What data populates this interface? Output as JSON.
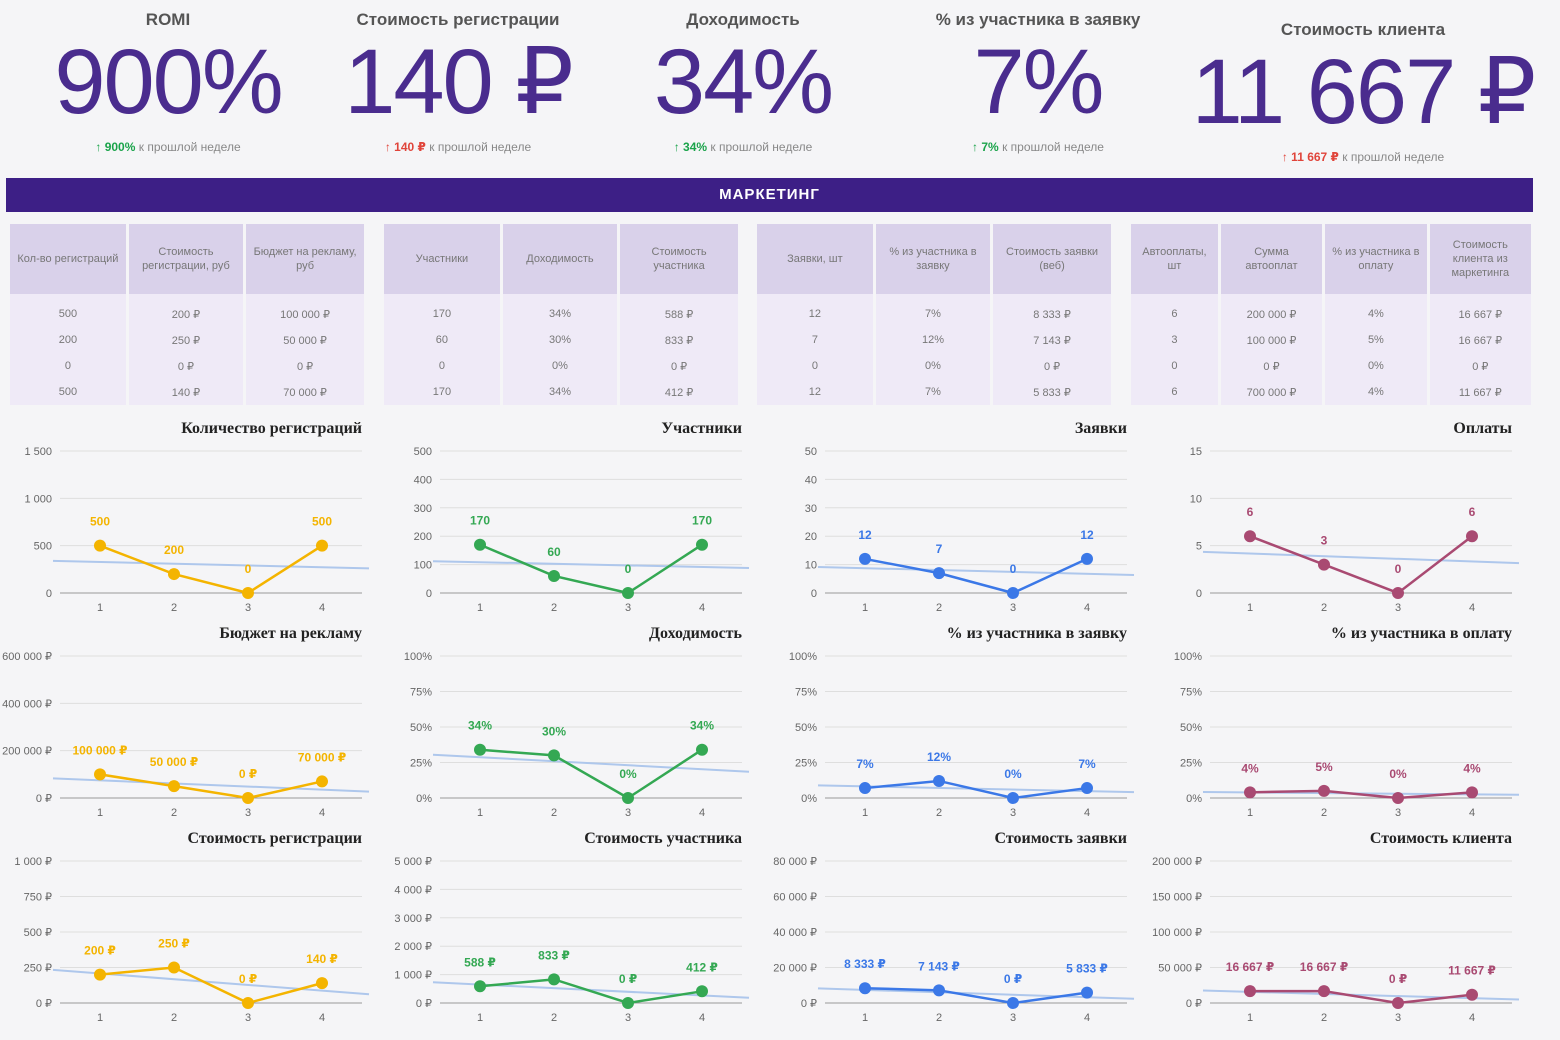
{
  "kpis": [
    {
      "title": "ROMI",
      "value": "900%",
      "delta": "↑ 900%",
      "delta_dir": "up",
      "suffix": "к прошлой неделе"
    },
    {
      "title": "Стоимость регистрации",
      "value": "140 ₽",
      "delta": "↑ 140 ₽",
      "delta_dir": "down",
      "suffix": "к прошлой неделе"
    },
    {
      "title": "Доходимость",
      "value": "34%",
      "delta": "↑ 34%",
      "delta_dir": "up",
      "suffix": "к прошлой неделе"
    },
    {
      "title": "% из участника в заявку",
      "value": "7%",
      "delta": "↑ 7%",
      "delta_dir": "up",
      "suffix": "к прошлой неделе"
    },
    {
      "title": "Стоимость клиента",
      "value": "11 667 ₽",
      "delta": "↑ 11 667 ₽",
      "delta_dir": "down",
      "suffix": "к прошлой неделе"
    }
  ],
  "banner": "МАРКЕТИНГ",
  "tables": [
    {
      "headers": [
        "Кол-во регистраций",
        "Стоимость регистрации, руб",
        "Бюджет на рекламу, руб"
      ],
      "rows": [
        [
          "500",
          "200 ₽",
          "100 000 ₽"
        ],
        [
          "200",
          "250 ₽",
          "50 000 ₽"
        ],
        [
          "0",
          "0 ₽",
          "0 ₽"
        ],
        [
          "500",
          "140 ₽",
          "70 000 ₽"
        ]
      ]
    },
    {
      "headers": [
        "Участники",
        "Доходимость",
        "Стоимость участника"
      ],
      "rows": [
        [
          "170",
          "34%",
          "588 ₽"
        ],
        [
          "60",
          "30%",
          "833 ₽"
        ],
        [
          "0",
          "0%",
          "0 ₽"
        ],
        [
          "170",
          "34%",
          "412 ₽"
        ]
      ]
    },
    {
      "headers": [
        "Заявки, шт",
        "% из участника в заявку",
        "Стоимость заявки (веб)"
      ],
      "rows": [
        [
          "12",
          "7%",
          "8 333 ₽"
        ],
        [
          "7",
          "12%",
          "7 143 ₽"
        ],
        [
          "0",
          "0%",
          "0 ₽"
        ],
        [
          "12",
          "7%",
          "5 833 ₽"
        ]
      ]
    },
    {
      "headers": [
        "Автооплаты, шт",
        "Сумма автооплат",
        "% из участника в оплату",
        "Стоимость клиента из маркетинга"
      ],
      "rows": [
        [
          "6",
          "200 000 ₽",
          "4%",
          "16 667 ₽"
        ],
        [
          "3",
          "100 000 ₽",
          "5%",
          "16 667 ₽"
        ],
        [
          "0",
          "0 ₽",
          "0%",
          "0 ₽"
        ],
        [
          "6",
          "700 000 ₽",
          "4%",
          "11 667 ₽"
        ]
      ]
    }
  ],
  "colors": {
    "orange": "#f4b400",
    "green": "#34a853",
    "blue": "#3b78e7",
    "plum": "#a94a72"
  },
  "chart_data": [
    {
      "type": "line",
      "title": "Количество регистраций",
      "x": [
        1,
        2,
        3,
        4
      ],
      "values": [
        500,
        200,
        0,
        500
      ],
      "labels": [
        "500",
        "200",
        "0",
        "500"
      ],
      "yticks": [
        "0",
        "500",
        "1 000",
        "1 500"
      ],
      "ylim": [
        0,
        1500
      ],
      "color": "orange",
      "trendline": true
    },
    {
      "type": "line",
      "title": "Участники",
      "x": [
        1,
        2,
        3,
        4
      ],
      "values": [
        170,
        60,
        0,
        170
      ],
      "labels": [
        "170",
        "60",
        "0",
        "170"
      ],
      "yticks": [
        "0",
        "100",
        "200",
        "300",
        "400",
        "500"
      ],
      "ylim": [
        0,
        500
      ],
      "color": "green",
      "trendline": true
    },
    {
      "type": "line",
      "title": "Заявки",
      "x": [
        1,
        2,
        3,
        4
      ],
      "values": [
        12,
        7,
        0,
        12
      ],
      "labels": [
        "12",
        "7",
        "0",
        "12"
      ],
      "yticks": [
        "0",
        "10",
        "20",
        "30",
        "40",
        "50"
      ],
      "ylim": [
        0,
        50
      ],
      "color": "blue",
      "trendline": true
    },
    {
      "type": "line",
      "title": "Оплаты",
      "x": [
        1,
        2,
        3,
        4
      ],
      "values": [
        6,
        3,
        0,
        6
      ],
      "labels": [
        "6",
        "3",
        "0",
        "6"
      ],
      "yticks": [
        "0",
        "5",
        "10",
        "15"
      ],
      "ylim": [
        0,
        15
      ],
      "color": "plum",
      "trendline": true
    },
    {
      "type": "line",
      "title": "Бюджет на рекламу",
      "x": [
        1,
        2,
        3,
        4
      ],
      "values": [
        100000,
        50000,
        0,
        70000
      ],
      "labels": [
        "100 000 ₽",
        "50 000 ₽",
        "0 ₽",
        "70 000 ₽"
      ],
      "yticks": [
        "0 ₽",
        "200 000 ₽",
        "400 000 ₽",
        "600 000 ₽"
      ],
      "ylim": [
        0,
        600000
      ],
      "color": "orange",
      "trendline": true
    },
    {
      "type": "line",
      "title": "Доходимость",
      "x": [
        1,
        2,
        3,
        4
      ],
      "values": [
        34,
        30,
        0,
        34
      ],
      "labels": [
        "34%",
        "30%",
        "0%",
        "34%"
      ],
      "yticks": [
        "0%",
        "25%",
        "50%",
        "75%",
        "100%"
      ],
      "ylim": [
        0,
        100
      ],
      "color": "green",
      "trendline": true
    },
    {
      "type": "line",
      "title": "% из участника в заявку",
      "x": [
        1,
        2,
        3,
        4
      ],
      "values": [
        7,
        12,
        0,
        7
      ],
      "labels": [
        "7%",
        "12%",
        "0%",
        "7%"
      ],
      "yticks": [
        "0%",
        "25%",
        "50%",
        "75%",
        "100%"
      ],
      "ylim": [
        0,
        100
      ],
      "color": "blue",
      "trendline": true
    },
    {
      "type": "line",
      "title": "% из участника в оплату",
      "x": [
        1,
        2,
        3,
        4
      ],
      "values": [
        4,
        5,
        0,
        4
      ],
      "labels": [
        "4%",
        "5%",
        "0%",
        "4%"
      ],
      "yticks": [
        "0%",
        "25%",
        "50%",
        "75%",
        "100%"
      ],
      "ylim": [
        0,
        100
      ],
      "color": "plum",
      "trendline": true
    },
    {
      "type": "line",
      "title": "Стоимость регистрации",
      "x": [
        1,
        2,
        3,
        4
      ],
      "values": [
        200,
        250,
        0,
        140
      ],
      "labels": [
        "200 ₽",
        "250 ₽",
        "0 ₽",
        "140 ₽"
      ],
      "yticks": [
        "0 ₽",
        "250 ₽",
        "500 ₽",
        "750 ₽",
        "1 000 ₽"
      ],
      "ylim": [
        0,
        1000
      ],
      "color": "orange",
      "trendline": true
    },
    {
      "type": "line",
      "title": "Стоимость участника",
      "x": [
        1,
        2,
        3,
        4
      ],
      "values": [
        588,
        833,
        0,
        412
      ],
      "labels": [
        "588 ₽",
        "833 ₽",
        "0 ₽",
        "412 ₽"
      ],
      "yticks": [
        "0 ₽",
        "1 000 ₽",
        "2 000 ₽",
        "3 000 ₽",
        "4 000 ₽",
        "5 000 ₽"
      ],
      "ylim": [
        0,
        5000
      ],
      "color": "green",
      "trendline": true
    },
    {
      "type": "line",
      "title": "Стоимость заявки",
      "x": [
        1,
        2,
        3,
        4
      ],
      "values": [
        8333,
        7143,
        0,
        5833
      ],
      "labels": [
        "8 333 ₽",
        "7 143 ₽",
        "0 ₽",
        "5 833 ₽"
      ],
      "yticks": [
        "0 ₽",
        "20 000 ₽",
        "40 000 ₽",
        "60 000 ₽",
        "80 000 ₽"
      ],
      "ylim": [
        0,
        80000
      ],
      "color": "blue",
      "trendline": true
    },
    {
      "type": "line",
      "title": "Стоимость клиента",
      "x": [
        1,
        2,
        3,
        4
      ],
      "values": [
        16667,
        16667,
        0,
        11667
      ],
      "labels": [
        "16 667 ₽",
        "16 667 ₽",
        "0 ₽",
        "11 667 ₽"
      ],
      "yticks": [
        "0 ₽",
        "50 000 ₽",
        "100 000 ₽",
        "150 000 ₽",
        "200 000 ₽"
      ],
      "ylim": [
        0,
        200000
      ],
      "color": "plum",
      "trendline": true
    }
  ]
}
